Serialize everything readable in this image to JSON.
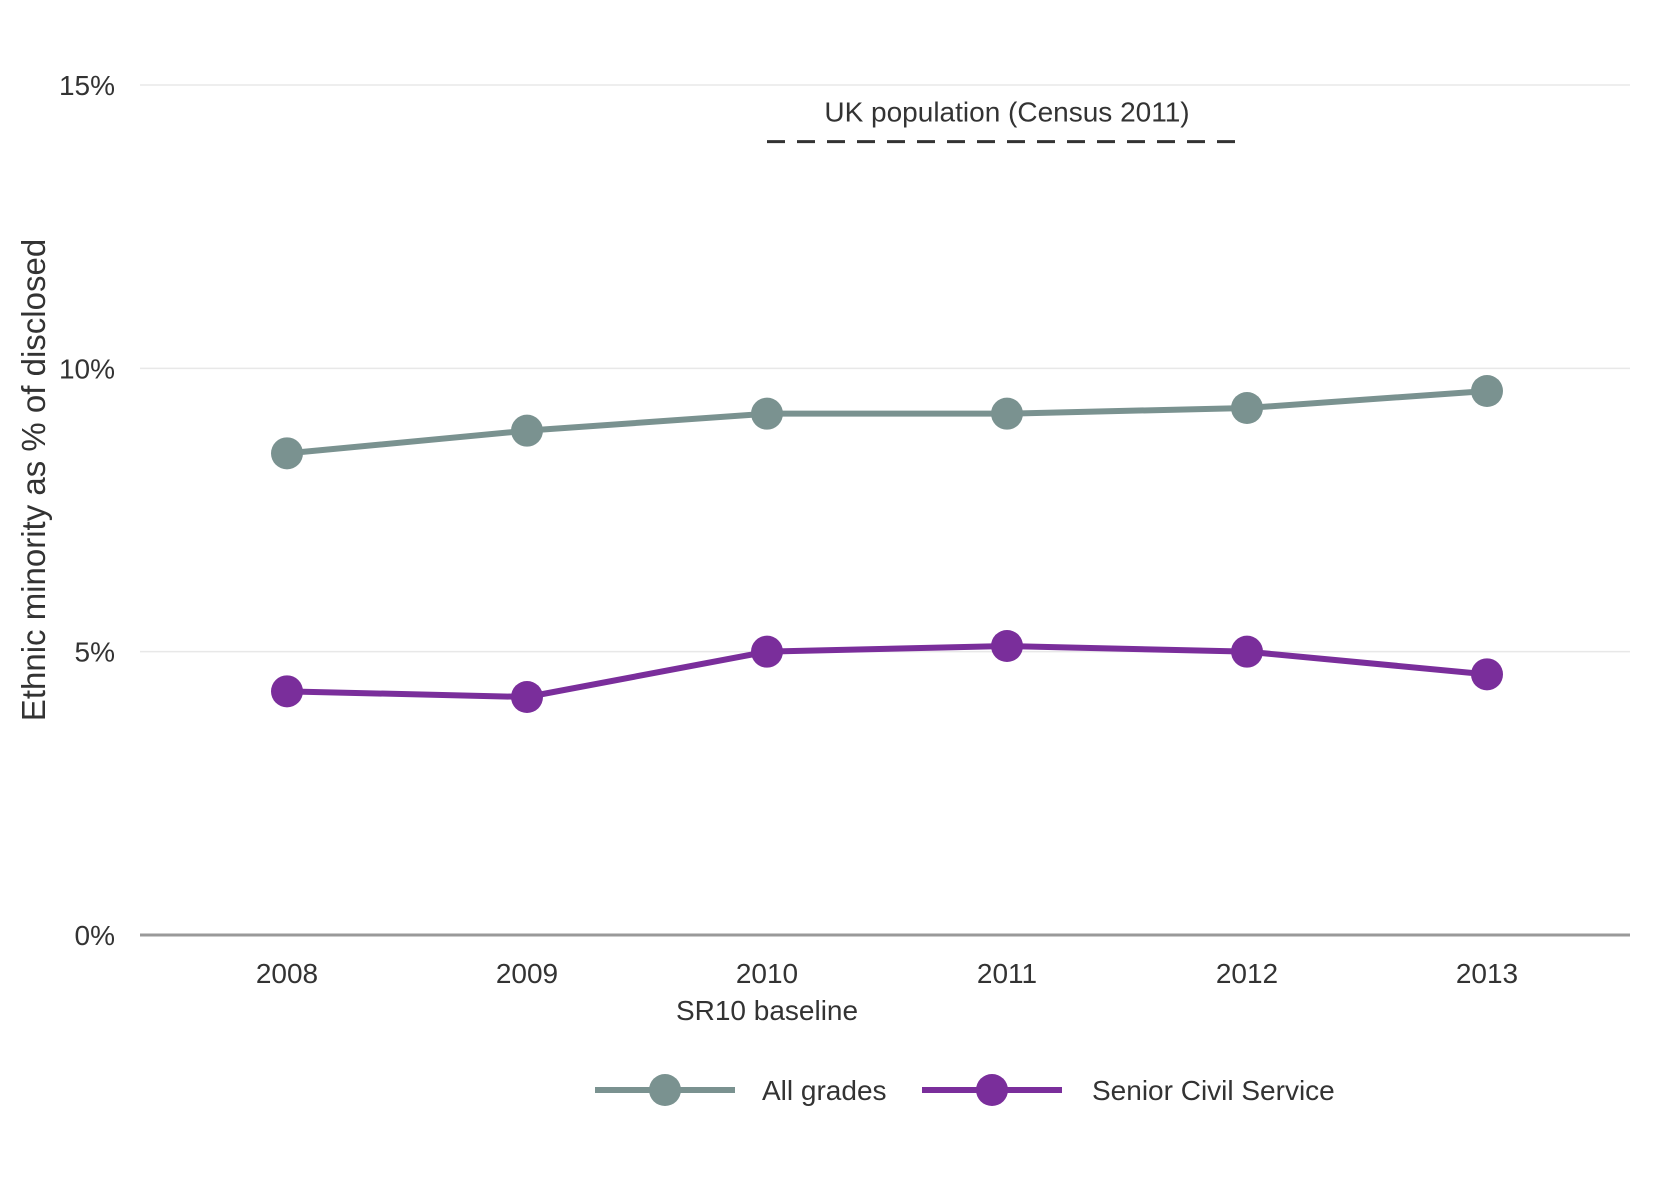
{
  "chart_data": {
    "type": "line",
    "ylabel": "Ethnic minority as % of disclosed",
    "xlabel": "",
    "categories": [
      "2008",
      "2009",
      "2010",
      "2011",
      "2012",
      "2013"
    ],
    "category_sublabels": [
      "",
      "",
      "SR10 baseline",
      "",
      "",
      ""
    ],
    "ylim": [
      0,
      15
    ],
    "yticks": [
      0,
      5,
      10,
      15
    ],
    "ytick_labels": [
      "0%",
      "5%",
      "10%",
      "15%"
    ],
    "grid": true,
    "legend_position": "bottom",
    "series": [
      {
        "name": "All grades",
        "color": "#7a9290",
        "values": [
          8.5,
          8.9,
          9.2,
          9.2,
          9.3,
          9.6
        ]
      },
      {
        "name": "Senior Civil Service",
        "color": "#7a2e9b",
        "values": [
          4.3,
          4.2,
          5.0,
          5.1,
          5.0,
          4.6
        ]
      }
    ],
    "reference_line": {
      "label": "UK population (Census 2011)",
      "value": 14.0,
      "x_range": [
        "2010",
        "2012"
      ],
      "style": "dashed",
      "color": "#333333"
    }
  }
}
